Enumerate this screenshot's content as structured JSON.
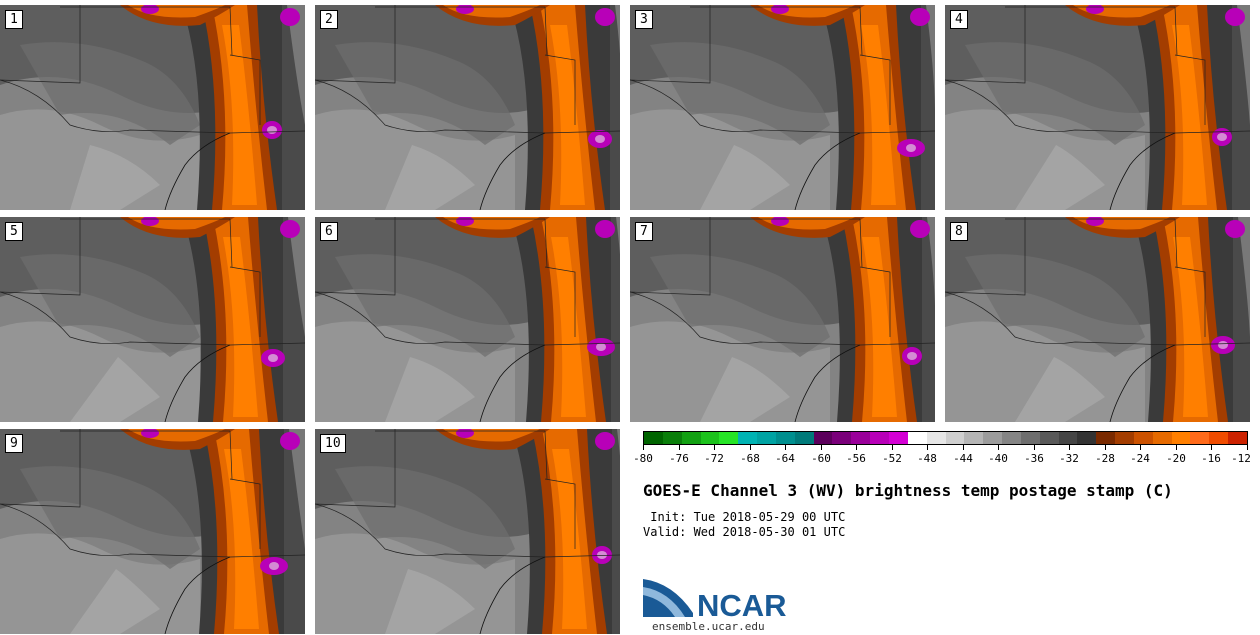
{
  "panels": [
    {
      "label": "1"
    },
    {
      "label": "2"
    },
    {
      "label": "3"
    },
    {
      "label": "4"
    },
    {
      "label": "5"
    },
    {
      "label": "6"
    },
    {
      "label": "7"
    },
    {
      "label": "8"
    },
    {
      "label": "9"
    },
    {
      "label": "10"
    }
  ],
  "colorbar": {
    "colors": [
      "#006400",
      "#0a7e0a",
      "#12a012",
      "#1cc21c",
      "#26e426",
      "#00b3b3",
      "#00a3a3",
      "#008f8f",
      "#007a7a",
      "#5c005c",
      "#7a007a",
      "#9a009a",
      "#b800b8",
      "#d400d4",
      "#ffffff",
      "#e6e6e6",
      "#cfcfcf",
      "#b5b5b5",
      "#9c9c9c",
      "#858585",
      "#6e6e6e",
      "#595959",
      "#454545",
      "#333333",
      "#7a2a00",
      "#a33d00",
      "#cc5200",
      "#e66a00",
      "#ff7f00",
      "#ff6a1a",
      "#f04c00",
      "#cc2200"
    ],
    "ticks": [
      "-80",
      "-76",
      "-72",
      "-68",
      "-64",
      "-60",
      "-56",
      "-52",
      "-48",
      "-44",
      "-40",
      "-36",
      "-32",
      "-28",
      "-24",
      "-20",
      "-16",
      "-12"
    ]
  },
  "title": "GOES-E Channel 3 (WV) brightness temp postage stamp (C)",
  "init": " Init: Tue 2018-05-29 00 UTC",
  "valid": "Valid: Wed 2018-05-30 01 UTC",
  "logo": {
    "text": "NCAR",
    "url": "ensemble.ucar.edu",
    "color": "#1a5a96"
  }
}
